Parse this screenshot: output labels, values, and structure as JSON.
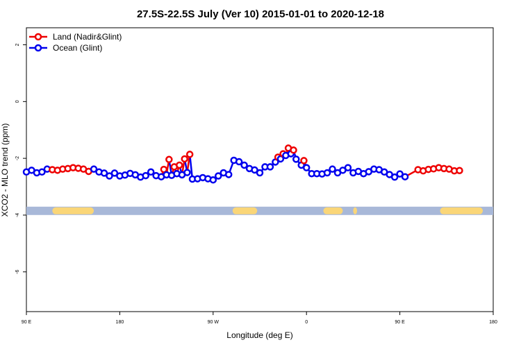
{
  "chart_data": {
    "type": "line",
    "title": "27.5S-22.5S July (Ver 10)   2015-01-01 to 2020-12-18",
    "xlabel": "Longitude (deg E)",
    "ylabel": "XCO2 - MLO trend (ppm)",
    "xlim": [
      90,
      450
    ],
    "ylim": [
      -7.4,
      2.6
    ],
    "x_ticks": [
      {
        "value": 90,
        "label": "90 E"
      },
      {
        "value": 162,
        "label": "180"
      },
      {
        "value": 234,
        "label": "90 W"
      },
      {
        "value": 306,
        "label": "0"
      },
      {
        "value": 378,
        "label": "90 E"
      },
      {
        "value": 450,
        "label": "180"
      }
    ],
    "y_ticks": [
      {
        "value": 2,
        "label": "2"
      },
      {
        "value": 0,
        "label": "0"
      },
      {
        "value": -2,
        "label": "-2"
      },
      {
        "value": -4,
        "label": "-4"
      },
      {
        "value": -6,
        "label": "-6"
      }
    ],
    "legend_position": "top-left",
    "series": [
      {
        "name": "Land (Nadir&Glint)",
        "color": "#ee0000",
        "points": [
          [
            110,
            -2.4
          ],
          [
            114,
            -2.42
          ],
          [
            118,
            -2.38
          ],
          [
            122,
            -2.36
          ],
          [
            126,
            -2.33
          ],
          [
            130,
            -2.35
          ],
          [
            134,
            -2.38
          ],
          [
            138,
            -2.46
          ],
          [
            196,
            -2.39
          ],
          [
            200,
            -2.04
          ],
          [
            204,
            -2.3
          ],
          [
            208,
            -2.24
          ],
          [
            212,
            -2.02
          ],
          [
            216,
            -1.86
          ],
          [
            284,
            -1.96
          ],
          [
            288,
            -1.84
          ],
          [
            292,
            -1.64
          ],
          [
            296,
            -1.71
          ],
          [
            304,
            -2.08
          ],
          [
            392,
            -2.4
          ],
          [
            396,
            -2.44
          ],
          [
            400,
            -2.39
          ],
          [
            404,
            -2.37
          ],
          [
            408,
            -2.33
          ],
          [
            412,
            -2.36
          ],
          [
            416,
            -2.38
          ],
          [
            420,
            -2.44
          ],
          [
            424,
            -2.43
          ]
        ]
      },
      {
        "name": "Ocean (Glint)",
        "color": "#0000ee",
        "points": [
          [
            90,
            -2.48
          ],
          [
            94,
            -2.42
          ],
          [
            98,
            -2.51
          ],
          [
            102,
            -2.48
          ],
          [
            106,
            -2.38
          ],
          [
            142,
            -2.38
          ],
          [
            146,
            -2.48
          ],
          [
            150,
            -2.52
          ],
          [
            154,
            -2.62
          ],
          [
            158,
            -2.52
          ],
          [
            162,
            -2.62
          ],
          [
            166,
            -2.59
          ],
          [
            170,
            -2.53
          ],
          [
            174,
            -2.58
          ],
          [
            178,
            -2.66
          ],
          [
            182,
            -2.61
          ],
          [
            186,
            -2.48
          ],
          [
            190,
            -2.61
          ],
          [
            194,
            -2.65
          ],
          [
            198,
            -2.58
          ],
          [
            202,
            -2.6
          ],
          [
            206,
            -2.54
          ],
          [
            210,
            -2.58
          ],
          [
            214,
            -2.5
          ],
          [
            218,
            -2.73
          ],
          [
            222,
            -2.72
          ],
          [
            226,
            -2.68
          ],
          [
            230,
            -2.72
          ],
          [
            234,
            -2.76
          ],
          [
            238,
            -2.62
          ],
          [
            242,
            -2.51
          ],
          [
            246,
            -2.57
          ],
          [
            250,
            -2.07
          ],
          [
            254,
            -2.12
          ],
          [
            258,
            -2.24
          ],
          [
            262,
            -2.36
          ],
          [
            266,
            -2.41
          ],
          [
            270,
            -2.51
          ],
          [
            274,
            -2.3
          ],
          [
            278,
            -2.3
          ],
          [
            282,
            -2.13
          ],
          [
            286,
            -2.02
          ],
          [
            290,
            -1.9
          ],
          [
            294,
            -1.84
          ],
          [
            298,
            -2.03
          ],
          [
            302,
            -2.24
          ],
          [
            306,
            -2.33
          ],
          [
            310,
            -2.54
          ],
          [
            314,
            -2.54
          ],
          [
            318,
            -2.55
          ],
          [
            322,
            -2.51
          ],
          [
            326,
            -2.38
          ],
          [
            330,
            -2.51
          ],
          [
            334,
            -2.42
          ],
          [
            338,
            -2.33
          ],
          [
            342,
            -2.51
          ],
          [
            346,
            -2.46
          ],
          [
            350,
            -2.54
          ],
          [
            354,
            -2.47
          ],
          [
            358,
            -2.38
          ],
          [
            362,
            -2.4
          ],
          [
            366,
            -2.48
          ],
          [
            370,
            -2.57
          ],
          [
            374,
            -2.66
          ],
          [
            378,
            -2.55
          ],
          [
            382,
            -2.65
          ]
        ]
      }
    ],
    "land_bar": {
      "y": -3.85,
      "ocean_color": "#a8b8d8",
      "land_color": "#fad678",
      "land_spans": [
        [
          110,
          142
        ],
        [
          249,
          268
        ],
        [
          319,
          334
        ],
        [
          342,
          345
        ],
        [
          409,
          442
        ]
      ]
    }
  }
}
